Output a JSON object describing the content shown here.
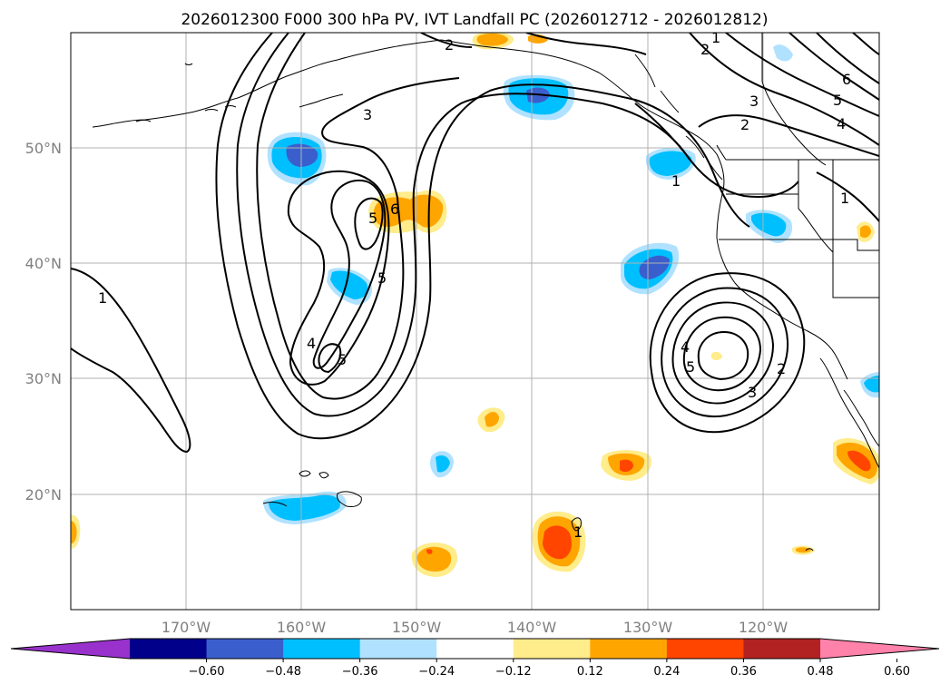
{
  "title": "2026012300 F000 300 hPa PV, IVT Landfall PC (2026012712 - 2026012812)",
  "map": {
    "lat_labels": [
      "50°N",
      "40°N",
      "30°N",
      "20°N"
    ],
    "lon_labels": [
      "170°W",
      "160°W",
      "150°W",
      "140°W",
      "130°W",
      "120°W"
    ]
  },
  "contours": {
    "labels": [
      "2",
      "1",
      "2",
      "3",
      "6",
      "5",
      "4",
      "2",
      "1",
      "1",
      "3",
      "6",
      "5",
      "5",
      "1",
      "4",
      "5",
      "4",
      "5",
      "3",
      "2",
      "1"
    ]
  },
  "colorbar": {
    "colors": [
      "#9932cc",
      "#00008b",
      "#3a5fcd",
      "#00bfff",
      "#b0e2ff",
      "#ffffff",
      "#ffec8b",
      "#ffa500",
      "#ff4500",
      "#b22222",
      "#ff82ab"
    ],
    "tick_labels": [
      "−0.60",
      "−0.48",
      "−0.36",
      "−0.24",
      "−0.12",
      "0.12",
      "0.24",
      "0.36",
      "0.48",
      "0.60"
    ]
  }
}
